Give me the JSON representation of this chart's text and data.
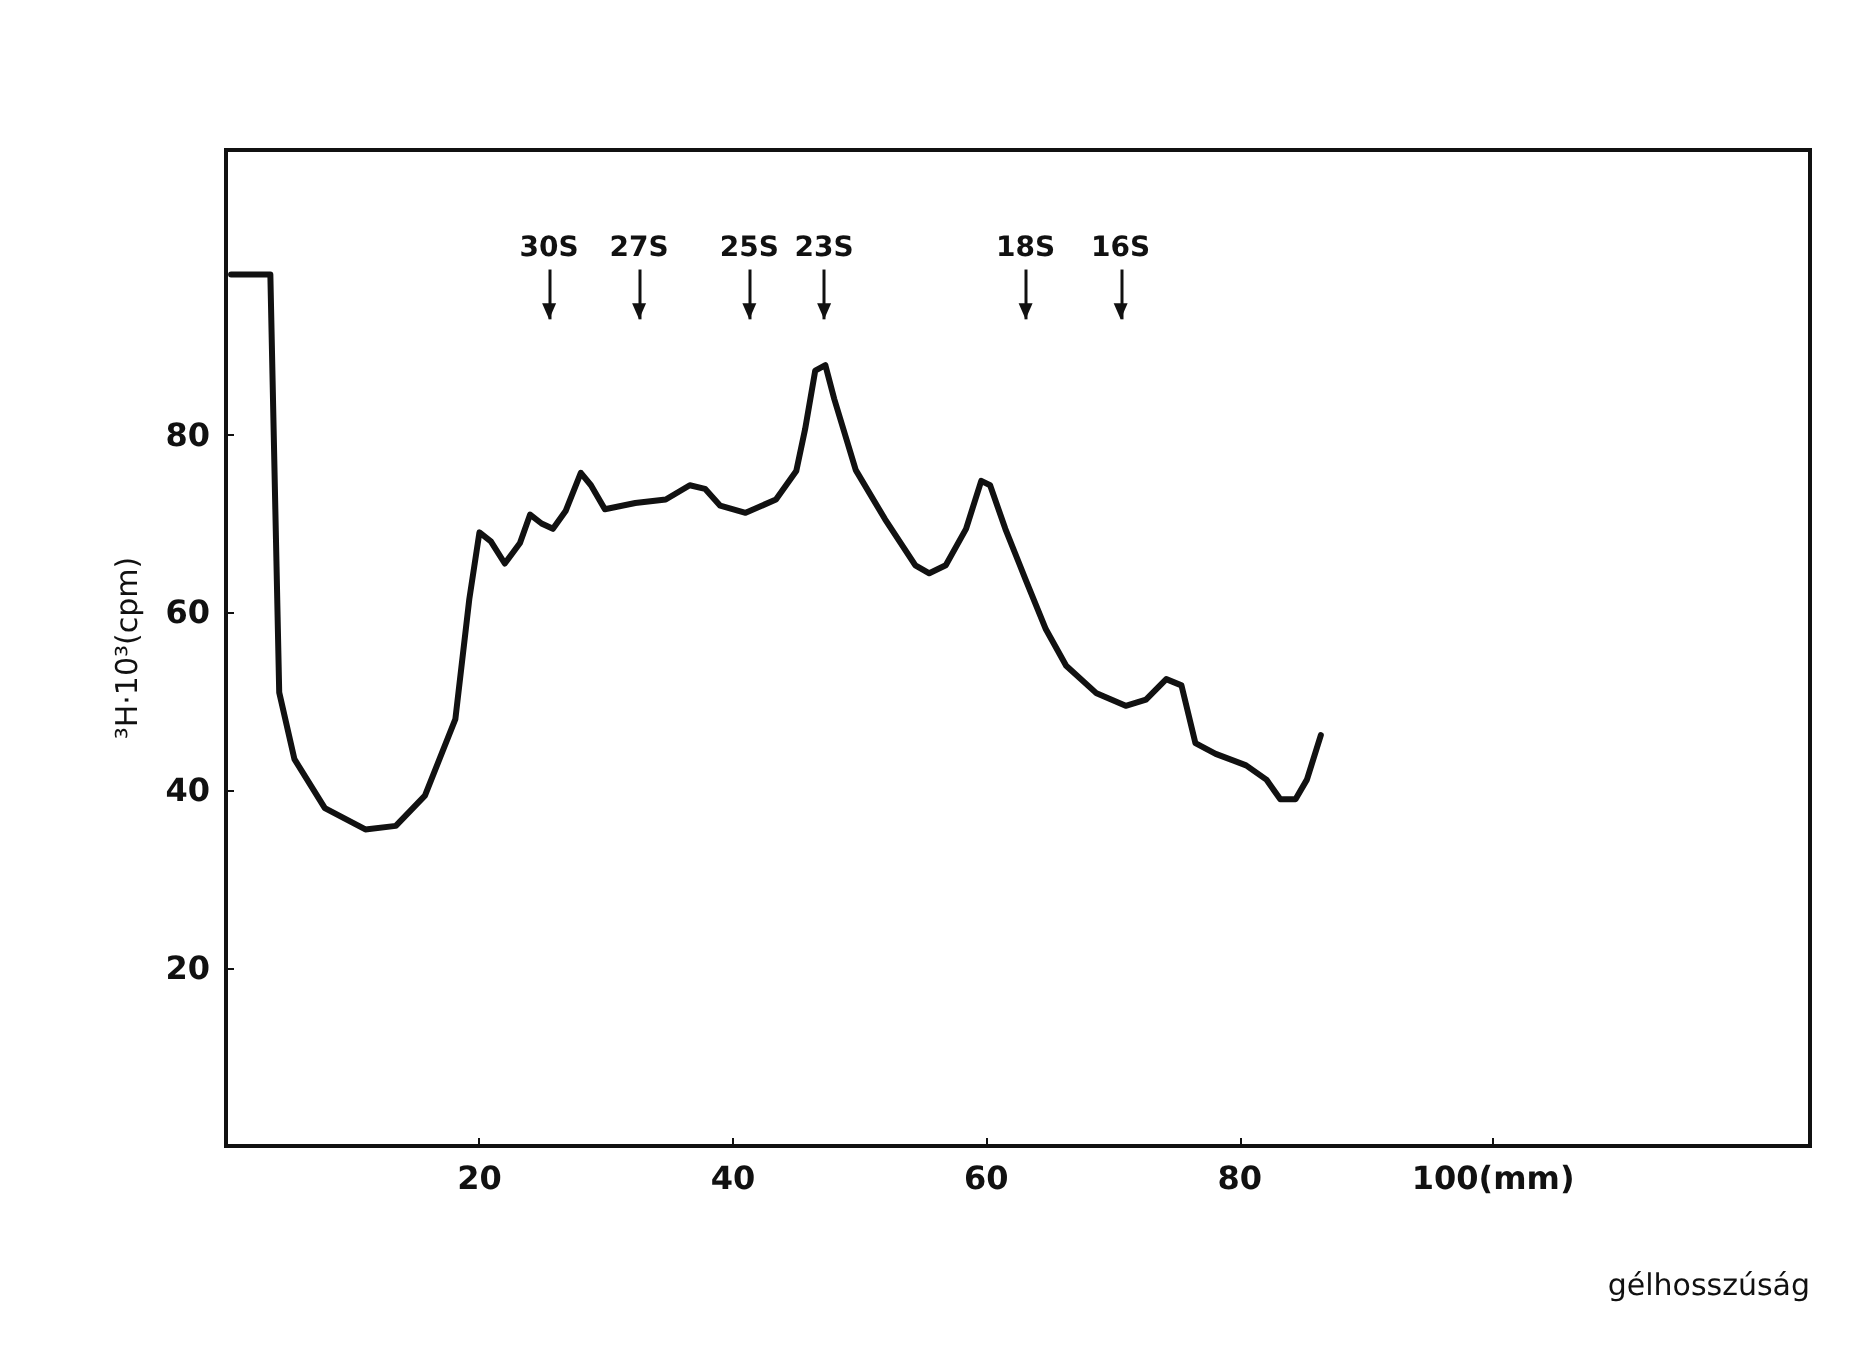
{
  "chart_data": {
    "type": "line",
    "xlabel": "gélhosszúság",
    "ylabel": "³H·10³(cpm)",
    "xlim": [
      0,
      125
    ],
    "ylim": [
      0,
      112
    ],
    "xticks": [
      20,
      40,
      60,
      80,
      {
        "value": 100,
        "label": "100(mm)"
      }
    ],
    "yticks": [
      20,
      40,
      60,
      80
    ],
    "grid": false,
    "marker": "none",
    "line_style": "solid",
    "ref_lines": [
      {
        "axis": "x",
        "value": 25.5,
        "label": "30S"
      },
      {
        "axis": "x",
        "value": 32.6,
        "label": "27S"
      },
      {
        "axis": "x",
        "value": 41.3,
        "label": "25S"
      },
      {
        "axis": "x",
        "value": 47.2,
        "label": "23S"
      },
      {
        "axis": "x",
        "value": 63.1,
        "label": "18S"
      },
      {
        "axis": "x",
        "value": 70.6,
        "label": "16S"
      }
    ],
    "series": [
      {
        "color": "#111111",
        "x": [
          0.4,
          3.5,
          4.2,
          5.4,
          7.8,
          11,
          13.4,
          15.7,
          18.1,
          19.2,
          20,
          20.9,
          22,
          23.2,
          24,
          24.9,
          25.8,
          26.8,
          28,
          28.8,
          29.9,
          32.3,
          34.7,
          36.6,
          37.8,
          39,
          41,
          43.4,
          45,
          45.7,
          46.5,
          47.3,
          48,
          49.7,
          52,
          54.4,
          55.5,
          56.8,
          58.4,
          59.6,
          60.3,
          61.5,
          63.1,
          64.7,
          66.3,
          68.7,
          71,
          72.6,
          74.2,
          75.4,
          76.5,
          78.1,
          80.5,
          82.1,
          83.2,
          84.4,
          85.3,
          86.4
        ],
        "values": [
          98,
          98,
          51,
          43.5,
          38,
          35.6,
          36,
          39.4,
          48,
          61.5,
          69,
          68,
          65.5,
          67.8,
          71,
          70,
          69.4,
          71.4,
          75.7,
          74.3,
          71.6,
          72.3,
          72.7,
          74.3,
          73.9,
          72,
          71.2,
          72.7,
          75.9,
          80.6,
          87.2,
          87.8,
          84,
          76,
          70.5,
          65.3,
          64.4,
          65.3,
          69.4,
          74.8,
          74.3,
          69.4,
          63.7,
          58.1,
          54,
          50.9,
          49.5,
          50.2,
          52.5,
          51.8,
          45.3,
          44.1,
          42.8,
          41.2,
          39,
          39,
          41.2,
          46.2
        ]
      }
    ]
  }
}
